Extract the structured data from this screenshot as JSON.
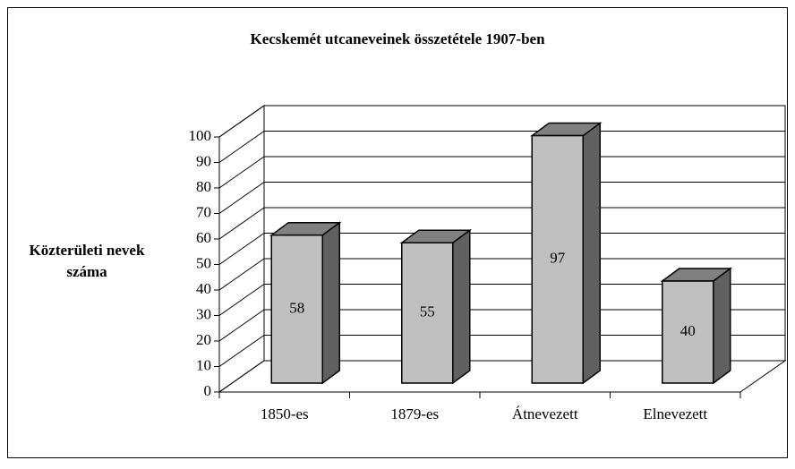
{
  "chart_data": {
    "type": "bar3d",
    "title": "Kecskemét utcaneveinek összetétele 1907-ben",
    "y_label": "Közterületi nevek száma",
    "categories": [
      "1850-es",
      "1879-es",
      "Átnevezett",
      "Elnevezett"
    ],
    "values": [
      58,
      55,
      97,
      40
    ],
    "color": "#c0c0c0",
    "ylim": [
      0,
      100
    ],
    "yticks": [
      0,
      10,
      20,
      30,
      40,
      50,
      60,
      70,
      80,
      90,
      100
    ],
    "grid": true
  }
}
